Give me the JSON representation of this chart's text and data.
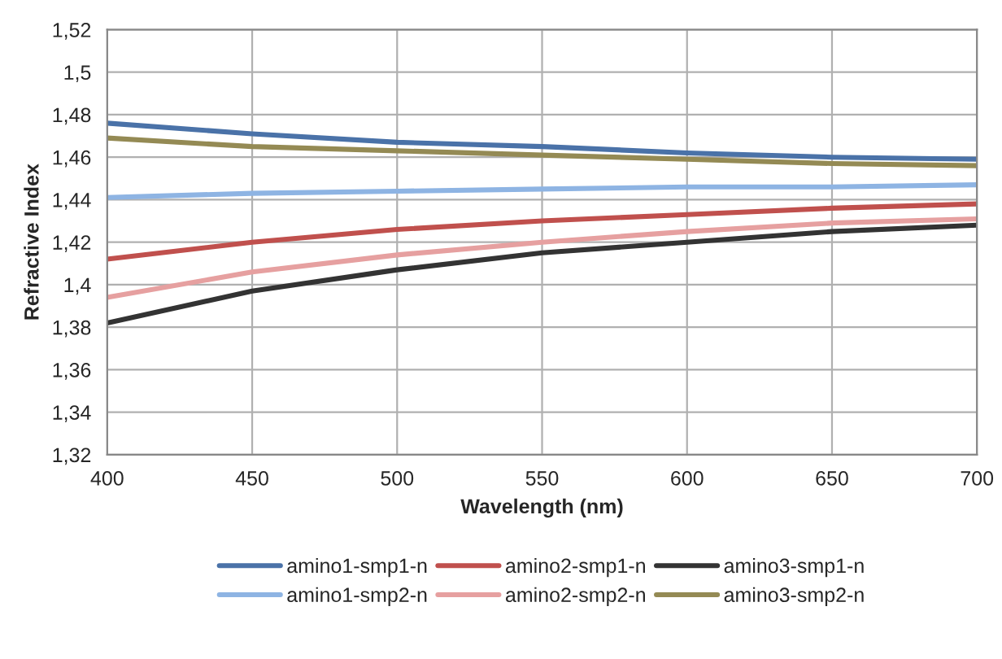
{
  "chart_data": {
    "type": "line",
    "xlabel": "Wavelength (nm)",
    "ylabel": "Refractive Index",
    "x": [
      400,
      450,
      500,
      550,
      600,
      650,
      700
    ],
    "series": [
      {
        "name": "amino1-smp1-n",
        "color": "#4a72a8",
        "values": [
          1.476,
          1.471,
          1.467,
          1.465,
          1.462,
          1.46,
          1.459
        ]
      },
      {
        "name": "amino1-smp2-n",
        "color": "#8eb4e3",
        "values": [
          1.441,
          1.443,
          1.444,
          1.445,
          1.446,
          1.446,
          1.447
        ]
      },
      {
        "name": "amino2-smp1-n",
        "color": "#c0504d",
        "values": [
          1.412,
          1.42,
          1.426,
          1.43,
          1.433,
          1.436,
          1.438
        ]
      },
      {
        "name": "amino2-smp2-n",
        "color": "#e6a0a0",
        "values": [
          1.394,
          1.406,
          1.414,
          1.42,
          1.425,
          1.429,
          1.431
        ]
      },
      {
        "name": "amino3-smp1-n",
        "color": "#333333",
        "values": [
          1.382,
          1.397,
          1.407,
          1.415,
          1.42,
          1.425,
          1.428
        ]
      },
      {
        "name": "amino3-smp2-n",
        "color": "#948a54",
        "values": [
          1.469,
          1.465,
          1.463,
          1.461,
          1.459,
          1.457,
          1.456
        ]
      }
    ],
    "xlim": [
      400,
      700
    ],
    "xticks": [
      400,
      450,
      500,
      550,
      600,
      650,
      700
    ],
    "ylim": [
      1.32,
      1.52
    ],
    "yticks": [
      {
        "value": 1.32,
        "label": "1,32"
      },
      {
        "value": 1.34,
        "label": "1,34"
      },
      {
        "value": 1.36,
        "label": "1,36"
      },
      {
        "value": 1.38,
        "label": "1,38"
      },
      {
        "value": 1.4,
        "label": "1,4"
      },
      {
        "value": 1.42,
        "label": "1,42"
      },
      {
        "value": 1.44,
        "label": "1,44"
      },
      {
        "value": 1.46,
        "label": "1,46"
      },
      {
        "value": 1.48,
        "label": "1,48"
      },
      {
        "value": 1.5,
        "label": "1,5"
      },
      {
        "value": 1.52,
        "label": "1,52"
      }
    ],
    "grid": true,
    "legend": "bottom",
    "marker": "none",
    "line_style": "solid"
  }
}
